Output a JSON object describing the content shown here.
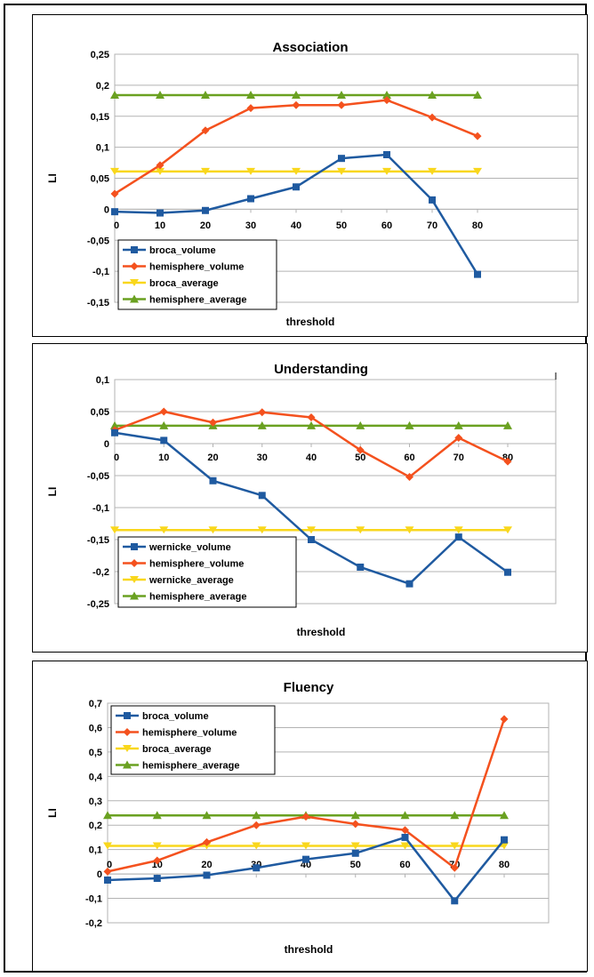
{
  "chart_data": [
    {
      "type": "line",
      "title": "Association",
      "xlabel": "threshold",
      "ylabel": "LI",
      "x": [
        0,
        10,
        20,
        30,
        40,
        50,
        60,
        70,
        80
      ],
      "xticks": [
        "0",
        "10",
        "20",
        "30",
        "40",
        "50",
        "60",
        "70",
        "80"
      ],
      "ylim": [
        -0.15,
        0.25
      ],
      "yticks": [
        -0.15,
        -0.1,
        -0.05,
        0,
        0.05,
        0.1,
        0.15,
        0.2,
        0.25
      ],
      "yticklabels": [
        "-0,15",
        "-0,1",
        "-0,05",
        "0",
        "0,05",
        "0,1",
        "0,15",
        "0,2",
        "0,25"
      ],
      "grid": "horizontal",
      "legend_position": "bottom-left",
      "series": [
        {
          "name": "broca_volume",
          "color": "#1f5aa0",
          "marker": "square",
          "values": [
            -0.004,
            -0.006,
            -0.002,
            0.017,
            0.036,
            0.082,
            0.088,
            0.015,
            -0.105
          ]
        },
        {
          "name": "hemisphere_volume",
          "color": "#f4511e",
          "marker": "diamond",
          "values": [
            0.025,
            0.071,
            0.127,
            0.163,
            0.168,
            0.168,
            0.176,
            0.148,
            0.118
          ]
        },
        {
          "name": "broca_average",
          "color": "#f9d71c",
          "marker": "triangle-down",
          "values": [
            0.061,
            0.061,
            0.061,
            0.061,
            0.061,
            0.061,
            0.061,
            0.061,
            0.061
          ]
        },
        {
          "name": "hemisphere_average",
          "color": "#6aa121",
          "marker": "triangle-up",
          "values": [
            0.184,
            0.184,
            0.184,
            0.184,
            0.184,
            0.184,
            0.184,
            0.184,
            0.184
          ]
        }
      ]
    },
    {
      "type": "line",
      "title": "Understanding",
      "xlabel": "threshold",
      "ylabel": "LI",
      "x": [
        0,
        10,
        20,
        30,
        40,
        50,
        60,
        70,
        80
      ],
      "xticks": [
        "0",
        "10",
        "20",
        "30",
        "40",
        "50",
        "60",
        "70",
        "80"
      ],
      "ylim": [
        -0.25,
        0.1
      ],
      "yticks": [
        -0.25,
        -0.2,
        -0.15,
        -0.1,
        -0.05,
        0,
        0.05,
        0.1
      ],
      "yticklabels": [
        "-0,25",
        "-0,2",
        "-0,15",
        "-0,1",
        "-0,05",
        "0",
        "0,05",
        "0,1"
      ],
      "grid": "horizontal",
      "legend_position": "bottom-left",
      "series": [
        {
          "name": "wernicke_volume",
          "color": "#1f5aa0",
          "marker": "square",
          "values": [
            0.017,
            0.005,
            -0.058,
            -0.081,
            -0.15,
            -0.193,
            -0.219,
            -0.146,
            -0.201
          ]
        },
        {
          "name": "hemisphere_volume",
          "color": "#f4511e",
          "marker": "diamond",
          "values": [
            0.021,
            0.05,
            0.033,
            0.049,
            0.041,
            -0.01,
            -0.052,
            0.009,
            -0.028
          ]
        },
        {
          "name": "wernicke_average",
          "color": "#f9d71c",
          "marker": "triangle-down",
          "values": [
            -0.135,
            -0.135,
            -0.135,
            -0.135,
            -0.135,
            -0.135,
            -0.135,
            -0.135,
            -0.135
          ]
        },
        {
          "name": "hemisphere_average",
          "color": "#6aa121",
          "marker": "triangle-up",
          "values": [
            0.028,
            0.028,
            0.028,
            0.028,
            0.028,
            0.028,
            0.028,
            0.028,
            0.028
          ]
        }
      ]
    },
    {
      "type": "line",
      "title": "Fluency",
      "xlabel": "threshold",
      "ylabel": "LI",
      "x": [
        0,
        10,
        20,
        30,
        40,
        50,
        60,
        70,
        80
      ],
      "xticks": [
        "0",
        "10",
        "20",
        "30",
        "40",
        "50",
        "60",
        "70",
        "80"
      ],
      "ylim": [
        -0.2,
        0.7
      ],
      "yticks": [
        -0.2,
        -0.1,
        0,
        0.1,
        0.2,
        0.3,
        0.4,
        0.5,
        0.6,
        0.7
      ],
      "yticklabels": [
        "-0,2",
        "-0,1",
        "0",
        "0,1",
        "0,2",
        "0,3",
        "0,4",
        "0,5",
        "0,6",
        "0,7"
      ],
      "grid": "horizontal",
      "legend_position": "top-left",
      "series": [
        {
          "name": "broca_volume",
          "color": "#1f5aa0",
          "marker": "square",
          "values": [
            -0.025,
            -0.018,
            -0.005,
            0.025,
            0.06,
            0.085,
            0.15,
            -0.11,
            0.14
          ]
        },
        {
          "name": "hemisphere_volume",
          "color": "#f4511e",
          "marker": "diamond",
          "values": [
            0.01,
            0.055,
            0.13,
            0.2,
            0.235,
            0.205,
            0.18,
            0.025,
            0.635
          ]
        },
        {
          "name": "broca_average",
          "color": "#f9d71c",
          "marker": "triangle-down",
          "values": [
            0.115,
            0.115,
            0.115,
            0.115,
            0.115,
            0.115,
            0.115,
            0.115,
            0.115
          ]
        },
        {
          "name": "hemisphere_average",
          "color": "#6aa121",
          "marker": "triangle-up",
          "values": [
            0.24,
            0.24,
            0.24,
            0.24,
            0.24,
            0.24,
            0.24,
            0.24,
            0.24
          ]
        }
      ]
    }
  ]
}
